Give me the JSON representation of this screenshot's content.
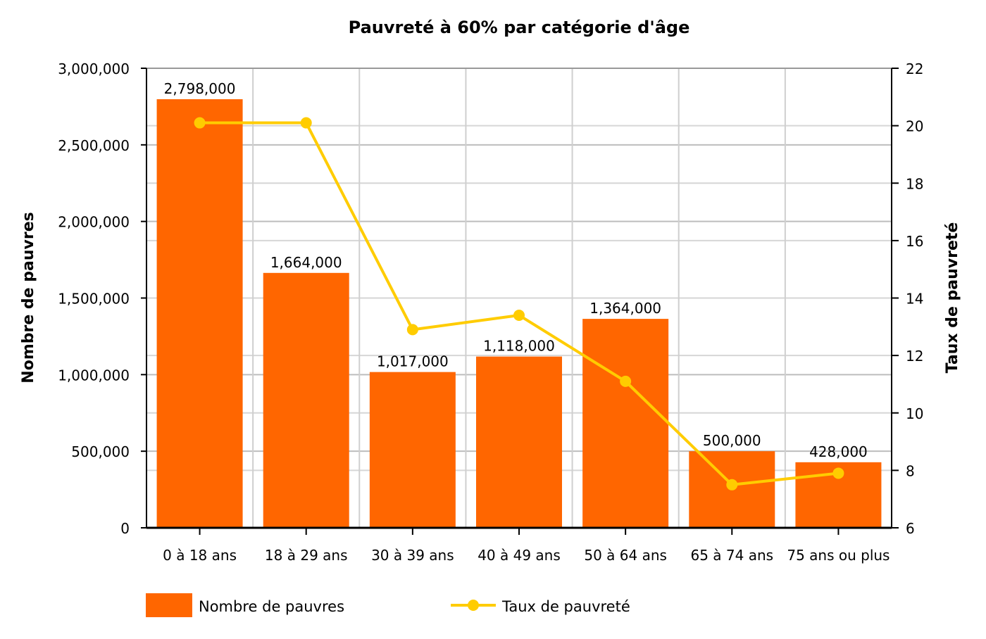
{
  "chart_data": {
    "type": "bar+line",
    "title": "Pauvreté à 60% par catégorie d'âge",
    "categories": [
      "0 à 18 ans",
      "18 à 29 ans",
      "30 à 39 ans",
      "40 à 49 ans",
      "50 à 64 ans",
      "65 à 74 ans",
      "75 ans ou plus"
    ],
    "series": [
      {
        "name": "Nombre de pauvres",
        "type": "bar",
        "axis": "left",
        "color": "#ff6600",
        "values": [
          2798000,
          1664000,
          1017000,
          1118000,
          1364000,
          500000,
          428000
        ],
        "labels": [
          "2,798,000",
          "1,664,000",
          "1,017,000",
          "1,118,000",
          "1,364,000",
          "500,000",
          "428,000"
        ]
      },
      {
        "name": "Taux de pauvreté",
        "type": "line",
        "axis": "right",
        "color": "#ffcc00",
        "values": [
          20.1,
          20.1,
          12.9,
          13.4,
          11.1,
          7.5,
          7.9
        ]
      }
    ],
    "ylabel": "Nombre de pauvres",
    "ylabel_right": "Taux de pauvreté",
    "ylim": [
      0,
      3000000
    ],
    "ylim_right": [
      6,
      22
    ],
    "yticks": [
      "0",
      "500,000",
      "1,000,000",
      "1,500,000",
      "2,000,000",
      "2,500,000",
      "3,000,000"
    ],
    "yticks_right": [
      "6",
      "8",
      "10",
      "12",
      "14",
      "16",
      "18",
      "20",
      "22"
    ],
    "grid": true,
    "legend": "bottom"
  }
}
